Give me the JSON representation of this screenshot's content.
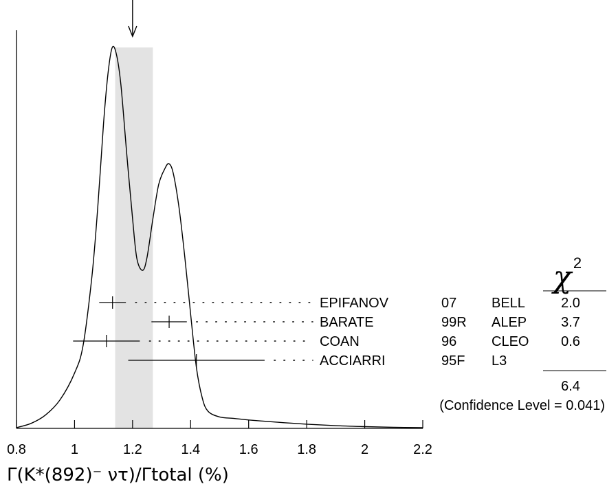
{
  "chart_data": {
    "type": "ideogram",
    "xlim": [
      0.8,
      2.2
    ],
    "x_ticks": [
      "0.8",
      "1",
      "1.2",
      "1.4",
      "1.6",
      "1.8",
      "2",
      "2.2"
    ],
    "x_tick_values": [
      0.8,
      1.0,
      1.2,
      1.4,
      1.6,
      1.8,
      2.0,
      2.2
    ],
    "xlabel": "Γ(K*(892)⁻ ντ)/Γtotal (%)",
    "average": 1.2,
    "band": [
      1.14,
      1.27
    ],
    "measurements": [
      {
        "value": 1.131,
        "err_low": 1.085,
        "err_high": 1.177,
        "author": "EPIFANOV",
        "year": "07",
        "experiment": "BELL",
        "chi2": "2.0"
      },
      {
        "value": 1.326,
        "err_low": 1.265,
        "err_high": 1.387,
        "author": "BARATE",
        "year": "99R",
        "experiment": "ALEP",
        "chi2": "3.7"
      },
      {
        "value": 1.11,
        "err_low": 0.995,
        "err_high": 1.225,
        "author": "COAN",
        "year": "96",
        "experiment": "CLEO",
        "chi2": "0.6"
      },
      {
        "value": 1.42,
        "err_low": 1.185,
        "err_high": 1.655,
        "author": "ACCIARRI",
        "year": "95F",
        "experiment": "L3",
        "chi2": ""
      }
    ],
    "chi2_header": "χ",
    "chi2_header_sup": "2",
    "chi2_total": "6.4",
    "confidence_level": "(Confidence Level = 0.041)",
    "ideogram_curve": [
      [
        0.8,
        0.002
      ],
      [
        0.85,
        0.013
      ],
      [
        0.9,
        0.035
      ],
      [
        0.95,
        0.075
      ],
      [
        1.0,
        0.145
      ],
      [
        1.03,
        0.22
      ],
      [
        1.06,
        0.4
      ],
      [
        1.08,
        0.58
      ],
      [
        1.1,
        0.8
      ],
      [
        1.115,
        0.93
      ],
      [
        1.13,
        1.0
      ],
      [
        1.145,
        0.98
      ],
      [
        1.16,
        0.9
      ],
      [
        1.18,
        0.72
      ],
      [
        1.2,
        0.55
      ],
      [
        1.215,
        0.445
      ],
      [
        1.235,
        0.415
      ],
      [
        1.25,
        0.45
      ],
      [
        1.27,
        0.55
      ],
      [
        1.29,
        0.64
      ],
      [
        1.31,
        0.68
      ],
      [
        1.325,
        0.695
      ],
      [
        1.34,
        0.67
      ],
      [
        1.36,
        0.58
      ],
      [
        1.38,
        0.45
      ],
      [
        1.4,
        0.3
      ],
      [
        1.42,
        0.16
      ],
      [
        1.44,
        0.08
      ],
      [
        1.46,
        0.045
      ],
      [
        1.5,
        0.03
      ],
      [
        1.55,
        0.026
      ],
      [
        1.6,
        0.022
      ],
      [
        1.7,
        0.016
      ],
      [
        1.8,
        0.011
      ],
      [
        1.9,
        0.007
      ],
      [
        2.0,
        0.0045
      ],
      [
        2.1,
        0.0028
      ],
      [
        2.2,
        0.0018
      ]
    ]
  }
}
